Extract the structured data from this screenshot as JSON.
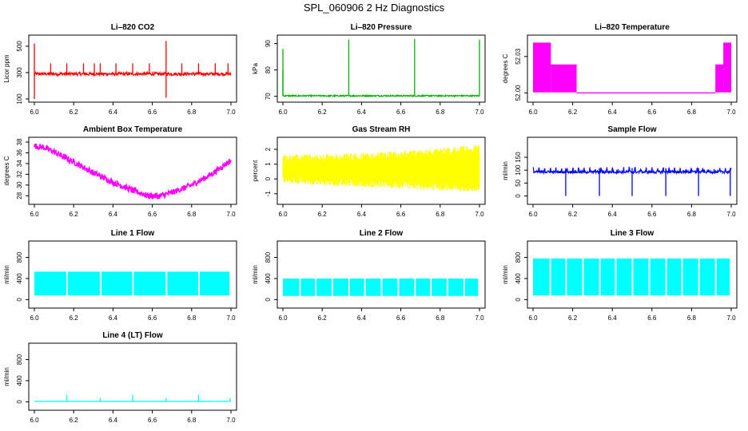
{
  "figure": {
    "title": "SPL_060906  2 Hz Diagnostics"
  },
  "chart_data": [
    {
      "id": "co2",
      "type": "line",
      "title": "Li–820 CO2",
      "xlabel": "",
      "ylabel": "Licor ppm",
      "color": "#ff0000",
      "xlim": [
        6.0,
        7.0
      ],
      "ylim": [
        100,
        560
      ],
      "xticks": [
        "6.0",
        "6.2",
        "6.4",
        "6.6",
        "6.8",
        "7.0"
      ],
      "yticks": [
        "100",
        "300",
        "500"
      ],
      "baseline": 290,
      "noise": 12,
      "spikes": [
        [
          6.0,
          520,
          100
        ],
        [
          6.083,
          370,
          0
        ],
        [
          6.165,
          370,
          0
        ],
        [
          6.25,
          370,
          0
        ],
        [
          6.305,
          370,
          0
        ],
        [
          6.335,
          370,
          0
        ],
        [
          6.415,
          370,
          0
        ],
        [
          6.5,
          370,
          0
        ],
        [
          6.585,
          370,
          0
        ],
        [
          6.67,
          540,
          110
        ],
        [
          6.75,
          370,
          0
        ],
        [
          6.835,
          370,
          0
        ],
        [
          6.92,
          370,
          0
        ],
        [
          6.985,
          370,
          0
        ]
      ]
    },
    {
      "id": "pressure",
      "type": "line",
      "title": "Li–820 Pressure",
      "xlabel": "",
      "ylabel": "kPa",
      "color": "#00b400",
      "xlim": [
        6.0,
        7.0
      ],
      "ylim": [
        69,
        92
      ],
      "xticks": [
        "6.0",
        "6.2",
        "6.4",
        "6.6",
        "6.8",
        "7.0"
      ],
      "yticks": [
        "70",
        "80",
        "90"
      ],
      "baseline": 70.2,
      "noise": 0.25,
      "spikes": [
        [
          6.0,
          88,
          80
        ],
        [
          6.335,
          91.5,
          70
        ],
        [
          6.67,
          91.8,
          70
        ],
        [
          7.0,
          91.5,
          70
        ]
      ]
    },
    {
      "id": "temperature",
      "type": "area",
      "title": "Li–820 Temperature",
      "xlabel": "",
      "ylabel": "degrees C",
      "color": "#ff00ff",
      "xlim": [
        6.0,
        7.0
      ],
      "ylim": [
        51.995,
        52.045
      ],
      "xticks": [
        "6.0",
        "6.2",
        "6.4",
        "6.6",
        "6.8",
        "7.0"
      ],
      "yticks": [
        "52.00",
        "52.03"
      ],
      "bands": [
        [
          6.0,
          6.09,
          52.0,
          52.041
        ],
        [
          6.09,
          6.22,
          52.0,
          52.023
        ],
        [
          6.22,
          6.92,
          52.0,
          52.0
        ],
        [
          6.92,
          6.96,
          52.0,
          52.023
        ],
        [
          6.96,
          7.0,
          52.0,
          52.041
        ]
      ]
    },
    {
      "id": "ambient",
      "type": "line",
      "title": "Ambient Box Temperature",
      "xlabel": "",
      "ylabel": "degrees C",
      "color": "#ff00ff",
      "xlim": [
        6.0,
        7.0
      ],
      "ylim": [
        27,
        38.3
      ],
      "xticks": [
        "6.0",
        "6.2",
        "6.4",
        "6.6",
        "6.8",
        "7.0"
      ],
      "yticks": [
        "28",
        "30",
        "32",
        "34",
        "36",
        "38"
      ],
      "curve": [
        [
          6.0,
          37.3
        ],
        [
          6.05,
          37.0
        ],
        [
          6.1,
          36.2
        ],
        [
          6.2,
          34.3
        ],
        [
          6.3,
          32.3
        ],
        [
          6.4,
          30.5
        ],
        [
          6.5,
          29.0
        ],
        [
          6.58,
          28.0
        ],
        [
          6.63,
          27.9
        ],
        [
          6.7,
          28.6
        ],
        [
          6.8,
          30.0
        ],
        [
          6.9,
          32.0
        ],
        [
          7.0,
          34.6
        ]
      ],
      "noise": 0.55
    },
    {
      "id": "rh",
      "type": "area",
      "title": "Gas Stream RH",
      "xlabel": "",
      "ylabel": "percent",
      "color": "#ffff00",
      "xlim": [
        6.0,
        7.0
      ],
      "ylim": [
        -1.5,
        2.6
      ],
      "xticks": [
        "6.0",
        "6.2",
        "6.4",
        "6.6",
        "6.8",
        "7.0"
      ],
      "yticks": [
        "-1",
        "0",
        "1",
        "2"
      ],
      "upper": [
        [
          6.0,
          1.6
        ],
        [
          6.5,
          1.8
        ],
        [
          7.0,
          2.3
        ]
      ],
      "lower": [
        [
          6.0,
          -0.3
        ],
        [
          6.5,
          -0.6
        ],
        [
          7.0,
          -0.9
        ]
      ],
      "noise": 0.3
    },
    {
      "id": "sample",
      "type": "line",
      "title": "Sample Flow",
      "xlabel": "",
      "ylabel": "ml/min",
      "color": "#0000ff",
      "xlim": [
        6.0,
        7.0
      ],
      "ylim": [
        -20,
        215
      ],
      "xticks": [
        "6.0",
        "6.2",
        "6.4",
        "6.6",
        "6.8",
        "7.0"
      ],
      "yticks": [
        "0",
        "50",
        "100",
        "150"
      ],
      "baseline": 93,
      "noise": 5,
      "spikes": [
        [
          6.165,
          108,
          0
        ],
        [
          6.335,
          108,
          0
        ],
        [
          6.5,
          108,
          0
        ],
        [
          6.67,
          108,
          0
        ],
        [
          6.835,
          108,
          0
        ],
        [
          6.995,
          108,
          0
        ]
      ],
      "teeth": 0.0285
    },
    {
      "id": "line1",
      "type": "area",
      "title": "Line 1 Flow",
      "xlabel": "",
      "ylabel": "ml/min",
      "color": "#00ffff",
      "xlim": [
        6.0,
        7.0
      ],
      "ylim": [
        -100,
        1050
      ],
      "xticks": [
        "6.0",
        "6.2",
        "6.4",
        "6.6",
        "6.8",
        "7.0"
      ],
      "yticks": [
        "0",
        "400",
        "800"
      ],
      "low": 80,
      "high": 530,
      "gaps": [
        6.165,
        6.335,
        6.5,
        6.67,
        6.835
      ]
    },
    {
      "id": "line2",
      "type": "area",
      "title": "Line 2 Flow",
      "xlabel": "",
      "ylabel": "ml/min",
      "color": "#00ffff",
      "xlim": [
        6.0,
        7.0
      ],
      "ylim": [
        -100,
        1050
      ],
      "xticks": [
        "6.0",
        "6.2",
        "6.4",
        "6.6",
        "6.8",
        "7.0"
      ],
      "yticks": [
        "0",
        "400",
        "800"
      ],
      "low": 70,
      "high": 400,
      "gaps": [
        6.085,
        6.165,
        6.25,
        6.335,
        6.415,
        6.5,
        6.585,
        6.67,
        6.75,
        6.835,
        6.92
      ]
    },
    {
      "id": "line3",
      "type": "area",
      "title": "Line 3 Flow",
      "xlabel": "",
      "ylabel": "ml/min",
      "color": "#00ffff",
      "xlim": [
        6.0,
        7.0
      ],
      "ylim": [
        -100,
        1050
      ],
      "xticks": [
        "6.0",
        "6.2",
        "6.4",
        "6.6",
        "6.8",
        "7.0"
      ],
      "yticks": [
        "0",
        "400",
        "800"
      ],
      "low": 80,
      "high": 780,
      "gaps": [
        6.085,
        6.165,
        6.25,
        6.335,
        6.415,
        6.5,
        6.585,
        6.67,
        6.75,
        6.835,
        6.92
      ]
    },
    {
      "id": "line4",
      "type": "line",
      "title": "Line 4 (LT) Flow",
      "xlabel": "",
      "ylabel": "ml/min",
      "color": "#00ffff",
      "xlim": [
        6.0,
        7.0
      ],
      "ylim": [
        -100,
        1050
      ],
      "xticks": [
        "6.0",
        "6.2",
        "6.4",
        "6.6",
        "6.8",
        "7.0"
      ],
      "yticks": [
        "0",
        "400",
        "800"
      ],
      "baseline": 8,
      "noise": 3,
      "spikes": [
        [
          6.165,
          130,
          0
        ],
        [
          6.335,
          70,
          0
        ],
        [
          6.5,
          130,
          0
        ],
        [
          6.67,
          70,
          0
        ],
        [
          6.835,
          130,
          0
        ],
        [
          6.995,
          70,
          0
        ]
      ]
    }
  ]
}
